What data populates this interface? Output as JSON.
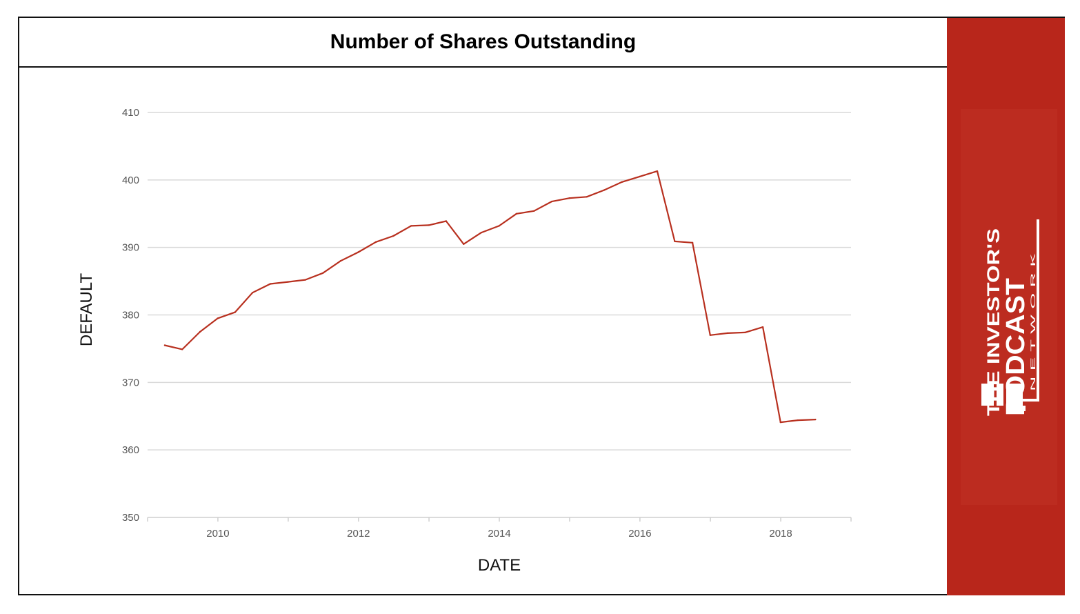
{
  "chart_data": {
    "type": "line",
    "title": "Number of Shares Outstanding",
    "xlabel": "DATE",
    "ylabel": "DEFAULT",
    "ylim": [
      350,
      410
    ],
    "xlim": [
      "2009-01-01",
      "2019-01-01"
    ],
    "yticks": [
      "350",
      "360",
      "370",
      "380",
      "390",
      "400",
      "410"
    ],
    "xticks": [
      "2010",
      "2012",
      "2014",
      "2016",
      "2018"
    ],
    "grid": true,
    "legend": "none",
    "line_color": "#b8301f",
    "series": [
      {
        "x": [
          "2009-03-31",
          "2009-06-30",
          "2009-09-30",
          "2009-12-31",
          "2010-03-31",
          "2010-06-30",
          "2010-09-30",
          "2010-12-31",
          "2011-03-31",
          "2011-06-30",
          "2011-09-30",
          "2011-12-31",
          "2012-03-31",
          "2012-06-30",
          "2012-09-30",
          "2012-12-31",
          "2013-03-31",
          "2013-06-30",
          "2013-09-30",
          "2013-12-31",
          "2014-03-31",
          "2014-06-30",
          "2014-09-30",
          "2014-12-31",
          "2015-03-31",
          "2015-06-30",
          "2015-09-30",
          "2015-12-31",
          "2016-03-31",
          "2016-06-30",
          "2016-09-30",
          "2016-12-31",
          "2017-03-31",
          "2017-06-30",
          "2017-09-30",
          "2017-12-31",
          "2018-03-31",
          "2018-06-30"
        ],
        "values": [
          375.5,
          374.9,
          377.5,
          379.5,
          380.4,
          383.3,
          384.6,
          384.9,
          385.2,
          386.2,
          388.0,
          389.3,
          390.8,
          391.7,
          393.2,
          393.3,
          393.9,
          390.5,
          392.2,
          393.2,
          395.0,
          395.4,
          396.8,
          397.3,
          397.5,
          398.5,
          399.7,
          400.5,
          401.3,
          390.9,
          390.7,
          377.0,
          377.3,
          377.4,
          378.2,
          364.1,
          364.4,
          364.5
        ]
      }
    ]
  },
  "brand": {
    "line1": "THE INVESTOR'S",
    "line2": "PODCAST",
    "line3": "N E T W O R K",
    "panel_color": "#b8261b"
  }
}
